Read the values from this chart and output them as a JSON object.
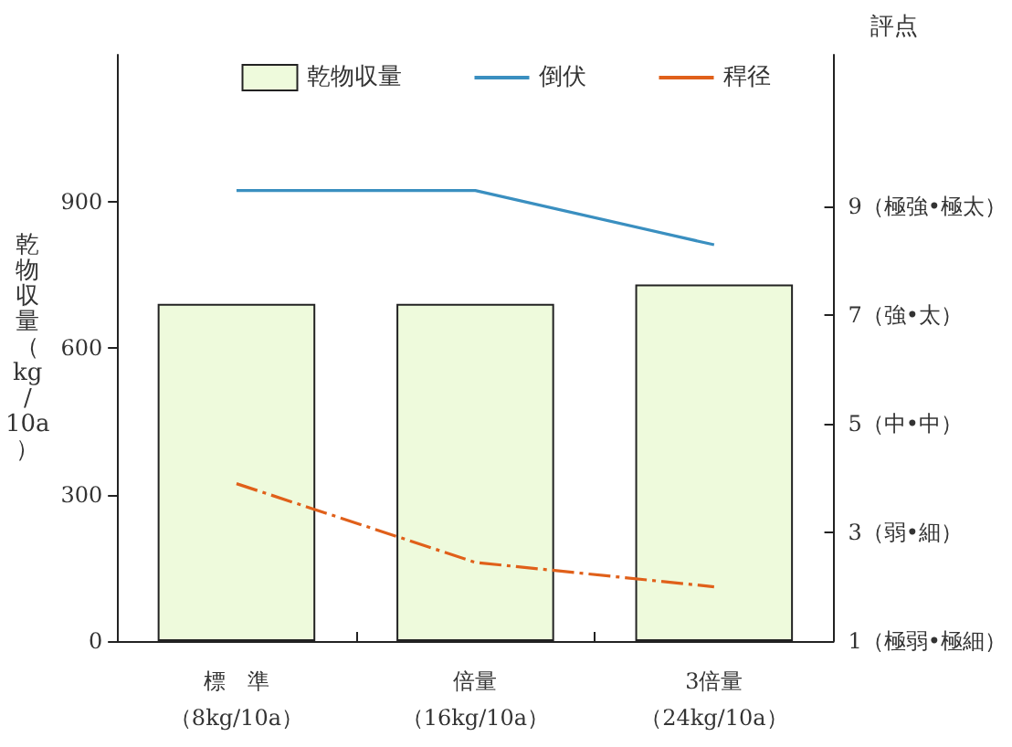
{
  "chart_data": {
    "type": "bar",
    "categories": [
      "標　準（8kg/10a）",
      "倍量（16kg/10a）",
      "3倍量（24kg/10a）"
    ],
    "ylabel": "乾物収量（kg/10a）",
    "y2label": "評点",
    "ylim": [
      0,
      1200
    ],
    "yticks": [
      0,
      300,
      600,
      900
    ],
    "y2lim": [
      1,
      11.8
    ],
    "y2ticks": [
      {
        "value": 1,
        "label": "1（極弱•極細）"
      },
      {
        "value": 3,
        "label": "3（弱•細）"
      },
      {
        "value": 5,
        "label": "5（中•中）"
      },
      {
        "value": 7,
        "label": "7（強•太）"
      },
      {
        "value": 9,
        "label": "9（極強•極太）"
      }
    ],
    "series": [
      {
        "name": "乾物収量",
        "color": "#eefadc",
        "values": [
          690,
          690,
          730
        ]
      },
      {
        "name": "倒伏",
        "type": "line",
        "axis": "y2",
        "color": "#3a8fc0",
        "values": [
          9.3,
          9.3,
          8.3
        ]
      },
      {
        "name": "稈径",
        "type": "line",
        "axis": "y2",
        "color": "#e0601a",
        "line_style": "dashed",
        "values": [
          3.9,
          2.45,
          2.0
        ]
      }
    ],
    "legend": "top",
    "grid": false,
    "marker": "none"
  }
}
